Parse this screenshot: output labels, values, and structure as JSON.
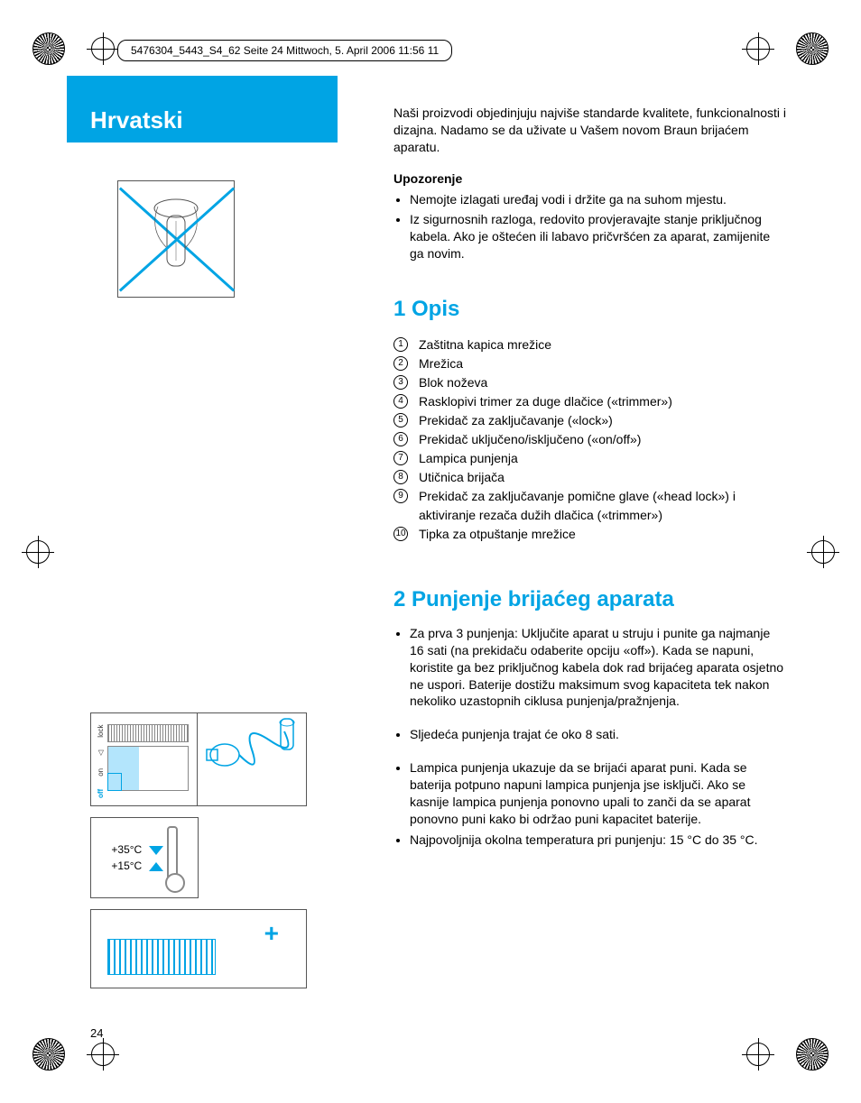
{
  "header": "5476304_5443_S4_62  Seite 24  Mittwoch, 5. April 2006  11:56 11",
  "language": "Hrvatski",
  "page_number": "24",
  "intro": "Naši proizvodi objedinjuju najviše standarde kvalitete, funkcionalnosti i dizajna. Nadamo se da uživate u Vašem novom Braun brijaćem aparatu.",
  "warning_heading": "Upozorenje",
  "warnings": [
    "Nemojte izlagati uređaj vodi i držite ga na suhom mjestu.",
    "Iz sigurnosnih razloga, redovito provjeravajte stanje priključnog kabela. Ako je oštećen ili labavo pričvršćen za aparat, zamijenite ga novim."
  ],
  "section1_title": "1  Opis",
  "description_items": [
    "Zaštitna kapica mrežice",
    "Mrežica",
    "Blok noževa",
    "Rasklopivi trimer za duge dlačice («trimmer»)",
    "Prekidač za zaključavanje («lock»)",
    "Prekidač uključeno/isključeno («on/off»)",
    "Lampica punjenja",
    "Utičnica brijača",
    "Prekidač za zaključavanje pomične glave («head lock») i aktiviranje rezača dužih dlačica («trimmer»)",
    "Tipka za otpuštanje mrežice"
  ],
  "section2_title": "2  Punjenje brijaćeg aparata",
  "charging_items": [
    " Za prva 3 punjenja: Uključite aparat u struju i punite ga najmanje 16 sati (na prekidaču odaberite opciju «off»). Kada se napuni, koristite ga bez priključnog kabela dok rad brijaćeg aparata osjetno ne uspori. Baterije dostižu maksimum svog kapaciteta tek nakon nekoliko uzastopnih ciklusa punjenja/pražnjenja.",
    "Sljedeća punjenja trajat će oko 8 sati.",
    "Lampica punjenja ukazuje da se brijaći aparat puni. Kada se baterija potpuno napuni lampica punjenja jse isključi. Ako se kasnije lampica punjenja ponovno upali to zanči da se aparat ponovno puni kako bi održao puni kapacitet baterije.",
    "Najpovoljnija okolna temperatura pri punjenju: 15 °C do 35 °C."
  ],
  "temp_high": "+35°C",
  "temp_low": "+15°C",
  "switch": {
    "off": "off",
    "on": "on",
    "lock": "lock"
  },
  "colors": {
    "accent": "#00a4e4",
    "text": "#000000",
    "bg": "#ffffff",
    "light_blue": "#b3e5fc",
    "grey": "#888888"
  }
}
